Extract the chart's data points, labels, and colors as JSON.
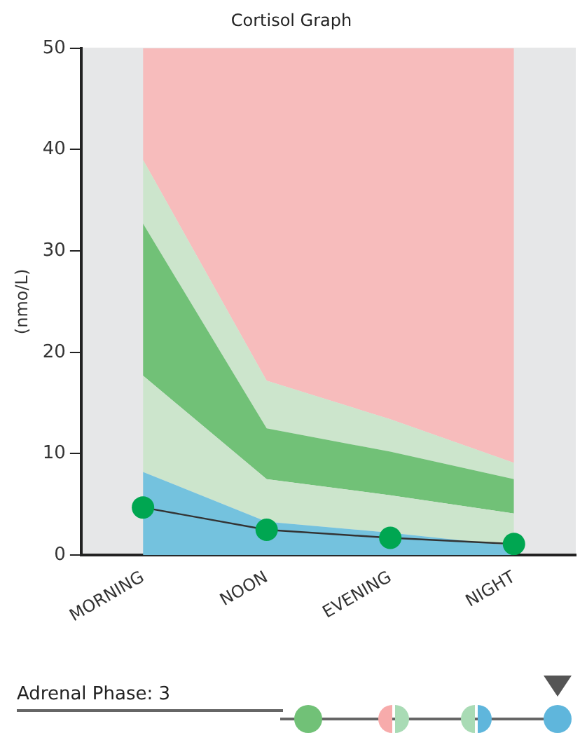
{
  "chart_data": {
    "type": "area",
    "title": "Cortisol Graph",
    "ylabel": "(nmo/L)",
    "categories": [
      "MORNING",
      "NOON",
      "EVENING",
      "NIGHT"
    ],
    "stacked": true,
    "ylim": [
      0,
      50
    ],
    "yticks": [
      0,
      10,
      20,
      30,
      40,
      50
    ],
    "grid": false,
    "legend": false,
    "annotations": [
      "Adrenal Phase:  3"
    ],
    "series": [
      {
        "color": "#74c2de",
        "values": [
          8.2,
          3.3,
          2.2,
          0.9
        ]
      },
      {
        "color": "#cce5cc",
        "values": [
          9.5,
          4.2,
          3.7,
          3.2
        ]
      },
      {
        "color": "#71c177",
        "values": [
          15,
          5,
          4.3,
          3.4
        ]
      },
      {
        "color": "#cce5cc",
        "values": [
          6.3,
          4.7,
          3.2,
          1.6
        ]
      },
      {
        "color": "#f7bcbc",
        "values": [
          11,
          32.8,
          36.6,
          40.9
        ]
      },
      {
        "type": "line",
        "color": "#00a651",
        "marker": "circle",
        "values": [
          4.7,
          2.5,
          1.7,
          1.1
        ]
      }
    ]
  }
}
